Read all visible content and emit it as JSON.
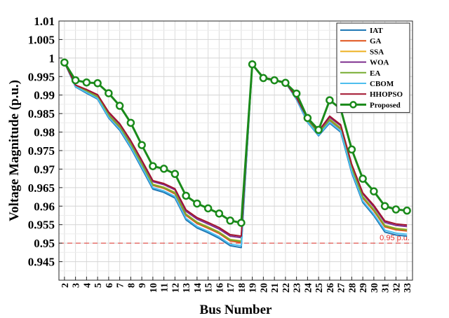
{
  "chart_data": {
    "type": "line",
    "title": "",
    "xlabel": "Bus Number",
    "ylabel": "Voltage Magnitude (p.u.)",
    "x": [
      2,
      3,
      4,
      5,
      6,
      7,
      8,
      9,
      10,
      11,
      12,
      13,
      14,
      15,
      16,
      17,
      18,
      19,
      20,
      21,
      22,
      23,
      24,
      25,
      26,
      27,
      28,
      29,
      30,
      31,
      32,
      33
    ],
    "ylim": [
      0.94,
      1.01
    ],
    "yticks": [
      0.945,
      0.95,
      0.955,
      0.96,
      0.965,
      0.97,
      0.975,
      0.98,
      0.985,
      0.99,
      0.995,
      1,
      1.005,
      1.01
    ],
    "ytick_labels": [
      "0.945",
      "0.95",
      "0.955",
      "0.96",
      "0.965",
      "0.97",
      "0.975",
      "0.98",
      "0.985",
      "0.99",
      "0.995",
      "1",
      "1.005",
      "1.01"
    ],
    "grid": true,
    "legend_position": "top-right",
    "reference_line": {
      "y": 0.95,
      "label": "0.95 p.u.",
      "color": "#e0302a"
    },
    "series": [
      {
        "name": "IAT",
        "color": "#1f77b4",
        "marker": false,
        "values": [
          0.9988,
          0.9922,
          0.9905,
          0.9889,
          0.9838,
          0.9805,
          0.9757,
          0.9702,
          0.9646,
          0.9637,
          0.9622,
          0.9563,
          0.9541,
          0.9528,
          0.9513,
          0.9493,
          0.9488,
          0.9983,
          0.9948,
          0.9941,
          0.9934,
          0.9888,
          0.9826,
          0.979,
          0.9824,
          0.98,
          0.9689,
          0.961,
          0.9574,
          0.953,
          0.9522,
          0.9519
        ]
      },
      {
        "name": "GA",
        "color": "#e0531b",
        "marker": false,
        "values": [
          0.9988,
          0.9924,
          0.991,
          0.9895,
          0.9845,
          0.9813,
          0.9766,
          0.9712,
          0.9656,
          0.9648,
          0.9633,
          0.9575,
          0.9553,
          0.954,
          0.9526,
          0.9506,
          0.9502,
          0.9983,
          0.9948,
          0.9941,
          0.9934,
          0.989,
          0.983,
          0.9795,
          0.9832,
          0.9808,
          0.97,
          0.9622,
          0.9587,
          0.9544,
          0.9536,
          0.9533
        ]
      },
      {
        "name": "SSA",
        "color": "#edb120",
        "marker": false,
        "values": [
          0.9988,
          0.9925,
          0.9912,
          0.9897,
          0.9848,
          0.9816,
          0.9769,
          0.9715,
          0.9659,
          0.9651,
          0.9637,
          0.9579,
          0.9557,
          0.9544,
          0.953,
          0.951,
          0.9506,
          0.9983,
          0.9948,
          0.9941,
          0.9934,
          0.9891,
          0.9832,
          0.9797,
          0.9835,
          0.9811,
          0.9704,
          0.9626,
          0.9591,
          0.9548,
          0.954,
          0.9537
        ]
      },
      {
        "name": "WOA",
        "color": "#7e2f8e",
        "marker": false,
        "values": [
          0.9988,
          0.9926,
          0.9914,
          0.99,
          0.9852,
          0.9821,
          0.9774,
          0.9721,
          0.9666,
          0.9658,
          0.9644,
          0.9586,
          0.9565,
          0.9552,
          0.9538,
          0.9519,
          0.9515,
          0.9983,
          0.9948,
          0.9941,
          0.9934,
          0.9892,
          0.9835,
          0.9801,
          0.984,
          0.9817,
          0.971,
          0.9633,
          0.9598,
          0.9556,
          0.9548,
          0.9545
        ]
      },
      {
        "name": "EA",
        "color": "#77ac30",
        "marker": false,
        "values": [
          0.9988,
          0.9925,
          0.9911,
          0.9896,
          0.9846,
          0.9815,
          0.9768,
          0.9714,
          0.9658,
          0.965,
          0.9636,
          0.9578,
          0.9556,
          0.9543,
          0.9529,
          0.9509,
          0.9505,
          0.9983,
          0.9948,
          0.9941,
          0.9934,
          0.9891,
          0.9831,
          0.9796,
          0.9834,
          0.981,
          0.9703,
          0.9625,
          0.959,
          0.9547,
          0.9539,
          0.9536
        ]
      },
      {
        "name": "CBOM",
        "color": "#4dbeee",
        "marker": false,
        "values": [
          0.9988,
          0.9923,
          0.9907,
          0.9891,
          0.984,
          0.9808,
          0.976,
          0.9706,
          0.965,
          0.9641,
          0.9626,
          0.9567,
          0.9545,
          0.9532,
          0.9517,
          0.9497,
          0.9493,
          0.9983,
          0.9948,
          0.9941,
          0.9934,
          0.9889,
          0.9827,
          0.9792,
          0.9827,
          0.9803,
          0.9693,
          0.9614,
          0.9578,
          0.9535,
          0.9527,
          0.9524
        ]
      },
      {
        "name": "HHOPSO",
        "color": "#a2142f",
        "marker": false,
        "values": [
          0.9988,
          0.9927,
          0.9915,
          0.9901,
          0.9854,
          0.9823,
          0.9777,
          0.9724,
          0.9669,
          0.9661,
          0.9647,
          0.959,
          0.9569,
          0.9556,
          0.9542,
          0.9523,
          0.9519,
          0.9983,
          0.9948,
          0.9941,
          0.9934,
          0.9893,
          0.9836,
          0.9803,
          0.9843,
          0.982,
          0.9713,
          0.9636,
          0.9602,
          0.956,
          0.9552,
          0.9549
        ]
      },
      {
        "name": "Proposed",
        "color": "#1a8a1a",
        "marker": true,
        "values": [
          0.9988,
          0.994,
          0.9934,
          0.9932,
          0.9905,
          0.9871,
          0.9825,
          0.9765,
          0.9708,
          0.9701,
          0.9687,
          0.9628,
          0.9607,
          0.9594,
          0.958,
          0.9561,
          0.9555,
          0.9983,
          0.9946,
          0.994,
          0.9933,
          0.9904,
          0.9838,
          0.9806,
          0.9886,
          0.9863,
          0.9753,
          0.9674,
          0.964,
          0.96,
          0.9591,
          0.9588
        ]
      }
    ]
  }
}
